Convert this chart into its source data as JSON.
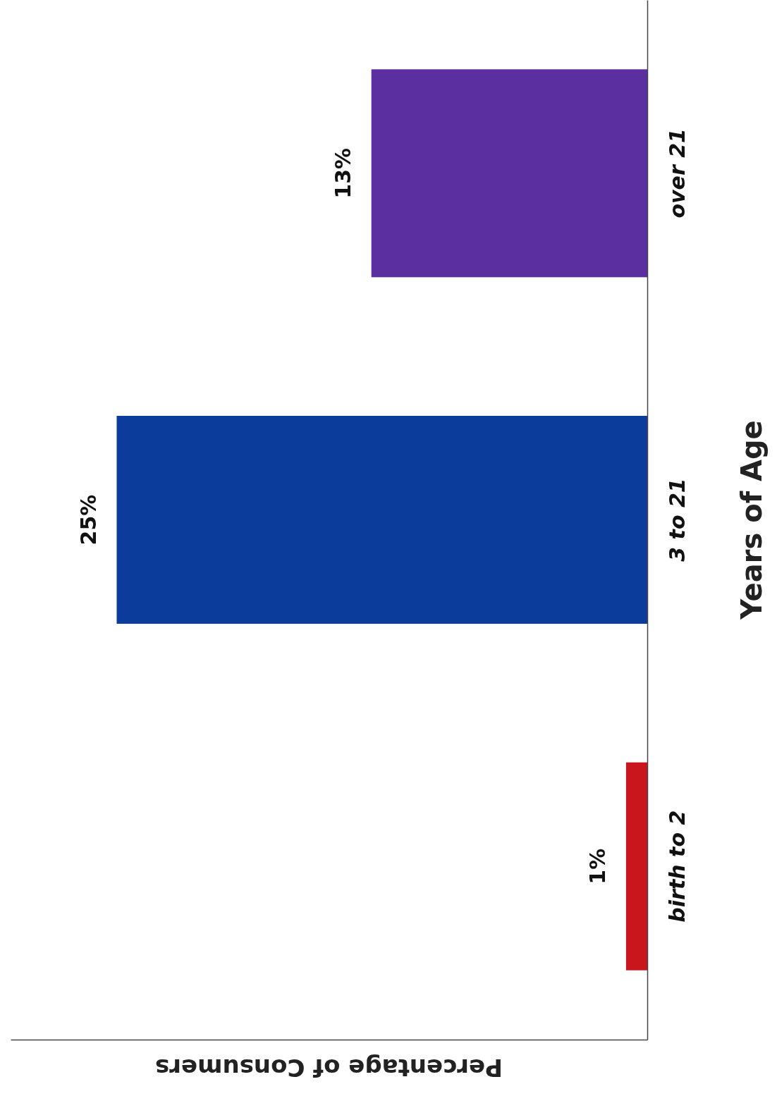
{
  "chart_data": {
    "type": "bar",
    "orientation": "horizontal",
    "xlabel": "Percentage of Consumers",
    "ylabel": "Years of Age",
    "categories": [
      "over 21",
      "3 to 21",
      "birth to 2"
    ],
    "values": [
      13,
      25,
      1
    ],
    "colors": [
      "#5b2fa0",
      "#0b3c9c",
      "#c8161c"
    ],
    "value_labels": [
      "13%",
      "25%",
      "1%"
    ],
    "xlim": [
      30,
      0
    ],
    "tick_labels": "y"
  }
}
